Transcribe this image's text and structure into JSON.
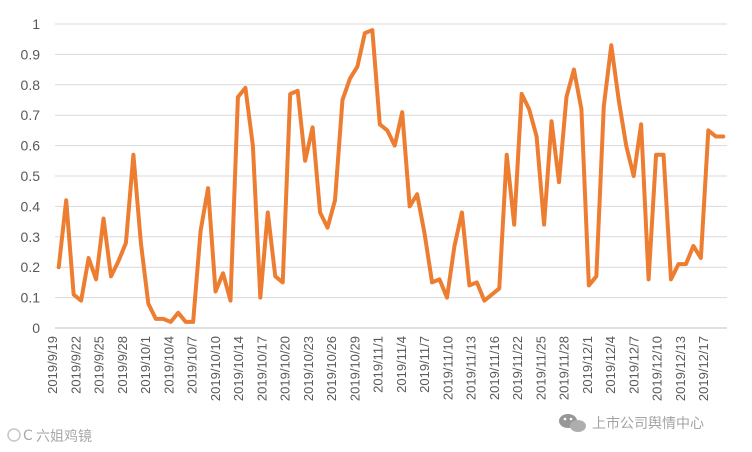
{
  "chart_data": {
    "type": "line",
    "title": "",
    "xlabel": "",
    "ylabel": "",
    "ylim": [
      0,
      1
    ],
    "grid": true,
    "legend": "none",
    "color": "#ED7D31",
    "y_ticks": [
      "0",
      "0.1",
      "0.2",
      "0.3",
      "0.4",
      "0.5",
      "0.6",
      "0.7",
      "0.8",
      "0.9",
      "1"
    ],
    "x_tick_labels": [
      "2019/9/19",
      "2019/9/22",
      "2019/9/25",
      "2019/9/28",
      "2019/10/1",
      "2019/10/4",
      "2019/10/7",
      "2019/10/10",
      "2019/10/14",
      "2019/10/17",
      "2019/10/20",
      "2019/10/23",
      "2019/10/26",
      "2019/10/29",
      "2019/11/1",
      "2019/11/4",
      "2019/11/7",
      "2019/11/10",
      "2019/11/13",
      "2019/11/16",
      "2019/11/22",
      "2019/11/25",
      "2019/11/28",
      "2019/12/1",
      "2019/12/4",
      "2019/12/7",
      "2019/12/10",
      "2019/12/13",
      "2019/12/17"
    ],
    "values": [
      0.2,
      0.42,
      0.11,
      0.09,
      0.23,
      0.16,
      0.36,
      0.17,
      0.22,
      0.28,
      0.57,
      0.28,
      0.08,
      0.03,
      0.03,
      0.02,
      0.05,
      0.02,
      0.02,
      0.32,
      0.46,
      0.12,
      0.18,
      0.09,
      0.76,
      0.79,
      0.6,
      0.1,
      0.38,
      0.17,
      0.15,
      0.77,
      0.78,
      0.55,
      0.66,
      0.38,
      0.33,
      0.42,
      0.75,
      0.82,
      0.86,
      0.97,
      0.98,
      0.67,
      0.65,
      0.6,
      0.71,
      0.4,
      0.44,
      0.31,
      0.15,
      0.16,
      0.1,
      0.27,
      0.38,
      0.14,
      0.15,
      0.09,
      0.11,
      0.13,
      0.57,
      0.34,
      0.77,
      0.72,
      0.63,
      0.34,
      0.68,
      0.48,
      0.76,
      0.85,
      0.72,
      0.14,
      0.17,
      0.73,
      0.93,
      0.75,
      0.6,
      0.5,
      0.67,
      0.16,
      0.57,
      0.57,
      0.16,
      0.21,
      0.21,
      0.27,
      0.23,
      0.65,
      0.63,
      0.63
    ]
  },
  "watermarks": {
    "left_text": "六姐鸡镜",
    "right_text": "上市公司舆情中心"
  }
}
